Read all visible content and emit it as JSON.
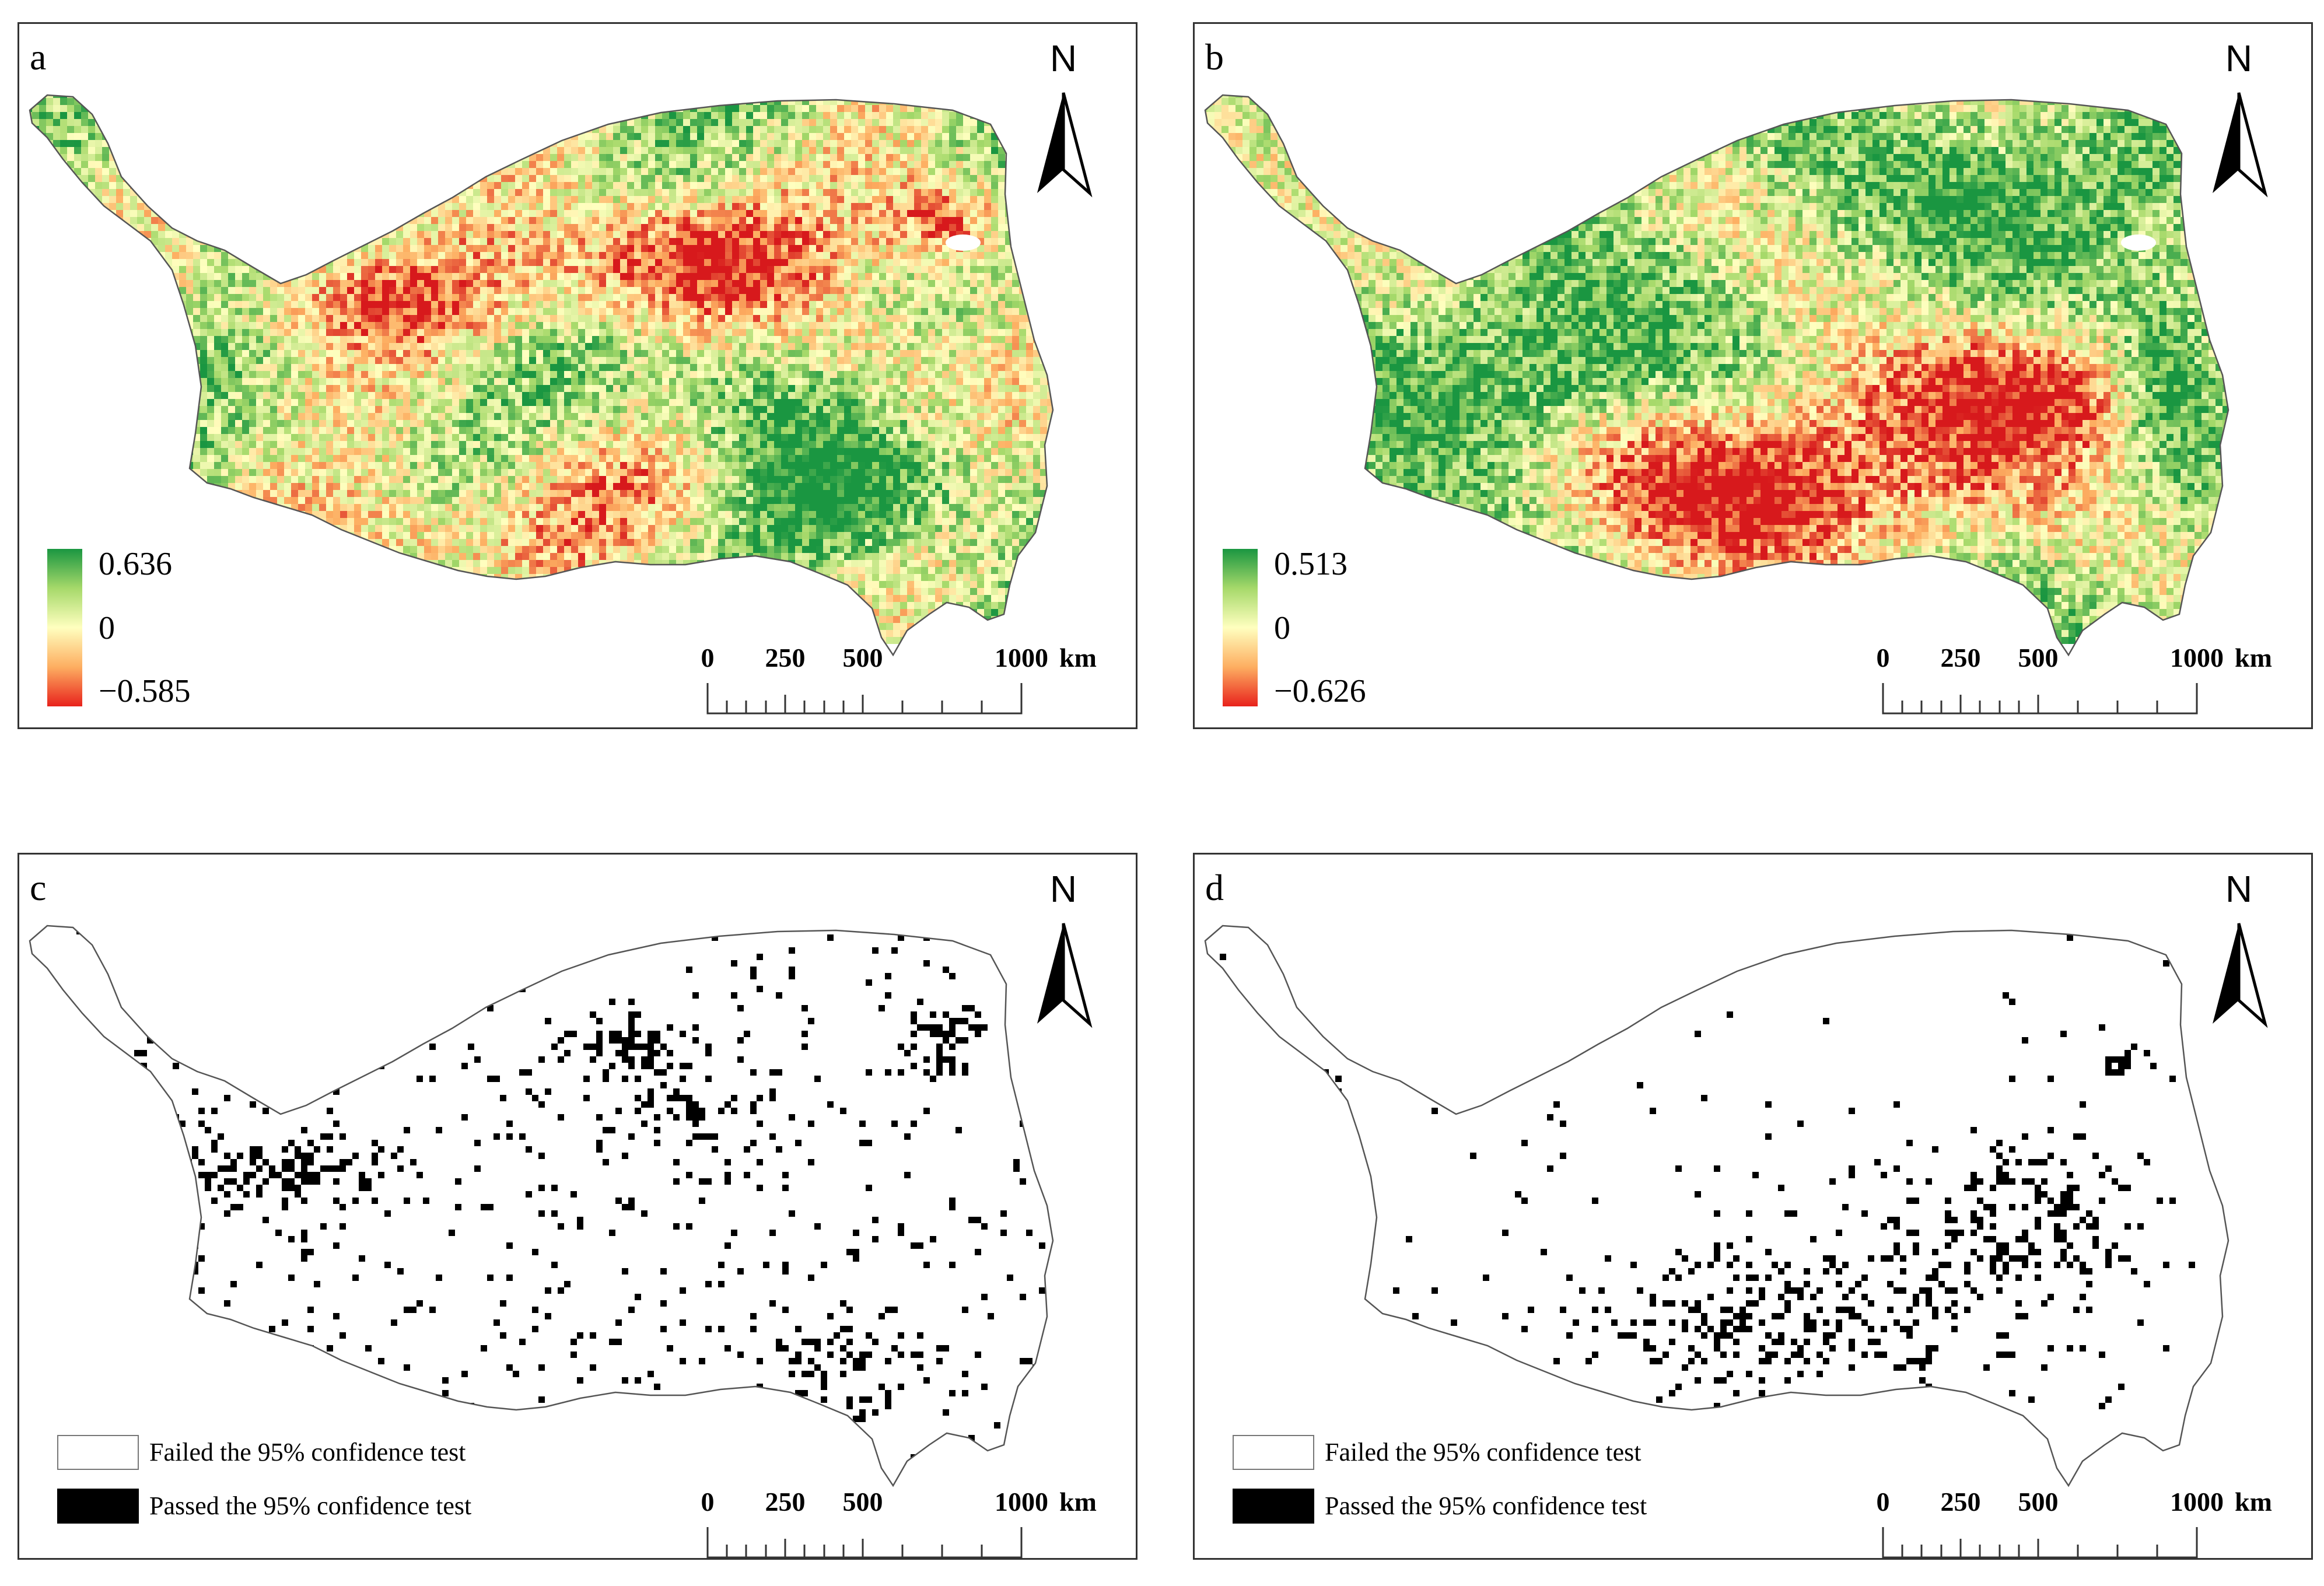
{
  "panels": [
    {
      "id": "a",
      "label": "a",
      "type": "continuous",
      "legend": {
        "max": "0.636",
        "mid": "0",
        "min": "−0.585"
      }
    },
    {
      "id": "b",
      "label": "b",
      "type": "continuous",
      "legend": {
        "max": "0.513",
        "mid": "0",
        "min": "−0.626"
      }
    },
    {
      "id": "c",
      "label": "c",
      "type": "significance"
    },
    {
      "id": "d",
      "label": "d",
      "type": "significance"
    }
  ],
  "north_label": "N",
  "scale_bar": {
    "labels": [
      "0",
      "250",
      "500",
      "1000"
    ],
    "unit": "km"
  },
  "significance_legend": {
    "failed": "Failed the 95% confidence test",
    "passed": "Passed the 95% confidence test"
  },
  "colors": {
    "positive": "#1a9641",
    "neutral": "#ffffbf",
    "negative": "#e8221c",
    "significant": "#000000"
  }
}
